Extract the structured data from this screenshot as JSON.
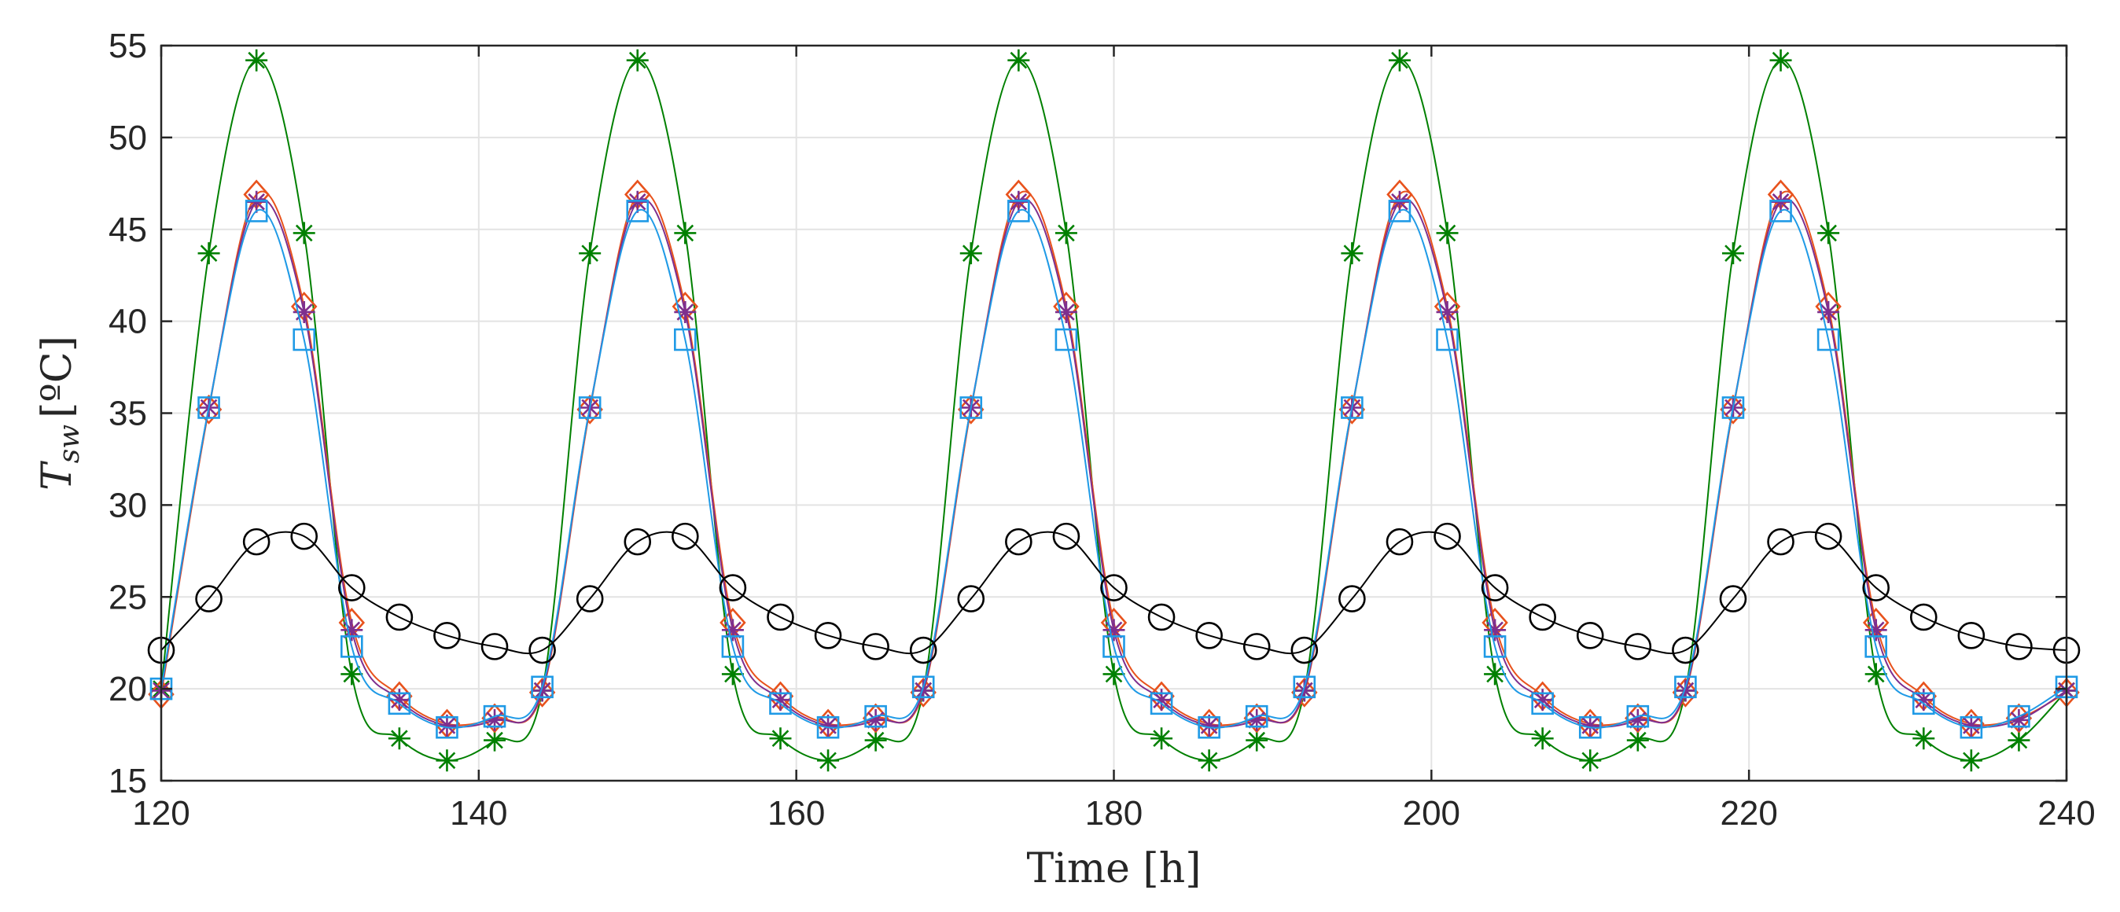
{
  "chart_data": {
    "type": "line",
    "title": "",
    "xlabel": "Time [h]",
    "ylabel_base": "T",
    "ylabel_sub": "sw",
    "ylabel_unit": "[ºC]",
    "xlim": [
      120,
      240
    ],
    "ylim": [
      15,
      55
    ],
    "xticks": [
      120,
      140,
      160,
      180,
      200,
      220,
      240
    ],
    "yticks": [
      15,
      20,
      25,
      30,
      35,
      40,
      45,
      50,
      55
    ],
    "grid": true,
    "legend": "none",
    "x": [
      120,
      123,
      126,
      129,
      132,
      135,
      138,
      141,
      144,
      147,
      150,
      153,
      156,
      159,
      162,
      165,
      168,
      171,
      174,
      177,
      180,
      183,
      186,
      189,
      192,
      195,
      198,
      201,
      204,
      207,
      210,
      213,
      216,
      219,
      222,
      225,
      228,
      231,
      234,
      237,
      240
    ],
    "series": [
      {
        "name": "green-asterisk",
        "color": "#008000",
        "marker": "asterisk",
        "values": [
          20.0,
          43.7,
          54.2,
          44.8,
          20.8,
          17.3,
          16.1,
          17.2,
          19.9,
          43.7,
          54.2,
          44.8,
          20.8,
          17.3,
          16.1,
          17.2,
          19.9,
          43.7,
          54.2,
          44.8,
          20.8,
          17.3,
          16.1,
          17.2,
          19.9,
          43.7,
          54.2,
          44.8,
          20.8,
          17.3,
          16.1,
          17.2,
          19.9,
          43.7,
          54.2,
          44.8,
          20.8,
          17.3,
          16.1,
          17.2,
          19.9
        ]
      },
      {
        "name": "orange-diamond",
        "color": "#e8521c",
        "marker": "diamond",
        "values": [
          19.7,
          35.2,
          46.9,
          40.8,
          23.6,
          19.6,
          18.1,
          18.4,
          19.8,
          35.2,
          46.9,
          40.8,
          23.6,
          19.6,
          18.1,
          18.4,
          19.8,
          35.2,
          46.9,
          40.8,
          23.6,
          19.6,
          18.1,
          18.4,
          19.8,
          35.2,
          46.9,
          40.8,
          23.6,
          19.6,
          18.1,
          18.4,
          19.8,
          35.2,
          46.9,
          40.8,
          23.6,
          19.6,
          18.1,
          18.4,
          19.8
        ]
      },
      {
        "name": "purple-star",
        "color": "#7e2f8e",
        "marker": "star",
        "values": [
          19.9,
          35.3,
          46.5,
          40.5,
          23.2,
          19.4,
          18.0,
          18.3,
          19.9,
          35.3,
          46.5,
          40.5,
          23.2,
          19.4,
          18.0,
          18.3,
          19.9,
          35.3,
          46.5,
          40.5,
          23.2,
          19.4,
          18.0,
          18.3,
          19.9,
          35.3,
          46.5,
          40.5,
          23.2,
          19.4,
          18.0,
          18.3,
          19.9,
          35.3,
          46.5,
          40.5,
          23.2,
          19.4,
          18.0,
          18.3,
          19.9
        ]
      },
      {
        "name": "blue-square",
        "color": "#1f9ae6",
        "marker": "square",
        "values": [
          20.0,
          35.3,
          46.0,
          39.0,
          22.3,
          19.2,
          17.9,
          18.5,
          20.1,
          35.3,
          46.0,
          39.0,
          22.3,
          19.2,
          17.9,
          18.5,
          20.1,
          35.3,
          46.0,
          39.0,
          22.3,
          19.2,
          17.9,
          18.5,
          20.1,
          35.3,
          46.0,
          39.0,
          22.3,
          19.2,
          17.9,
          18.5,
          20.1,
          35.3,
          46.0,
          39.0,
          22.3,
          19.2,
          17.9,
          18.5,
          20.1
        ]
      },
      {
        "name": "black-circle",
        "color": "#000000",
        "marker": "circle",
        "values": [
          22.1,
          24.9,
          28.0,
          28.3,
          25.5,
          23.9,
          22.9,
          22.3,
          22.1,
          24.9,
          28.0,
          28.3,
          25.5,
          23.9,
          22.9,
          22.3,
          22.1,
          24.9,
          28.0,
          28.3,
          25.5,
          23.9,
          22.9,
          22.3,
          22.1,
          24.9,
          28.0,
          28.3,
          25.5,
          23.9,
          22.9,
          22.3,
          22.1,
          24.9,
          28.0,
          28.3,
          25.5,
          23.9,
          22.9,
          22.3,
          22.1
        ]
      }
    ]
  }
}
